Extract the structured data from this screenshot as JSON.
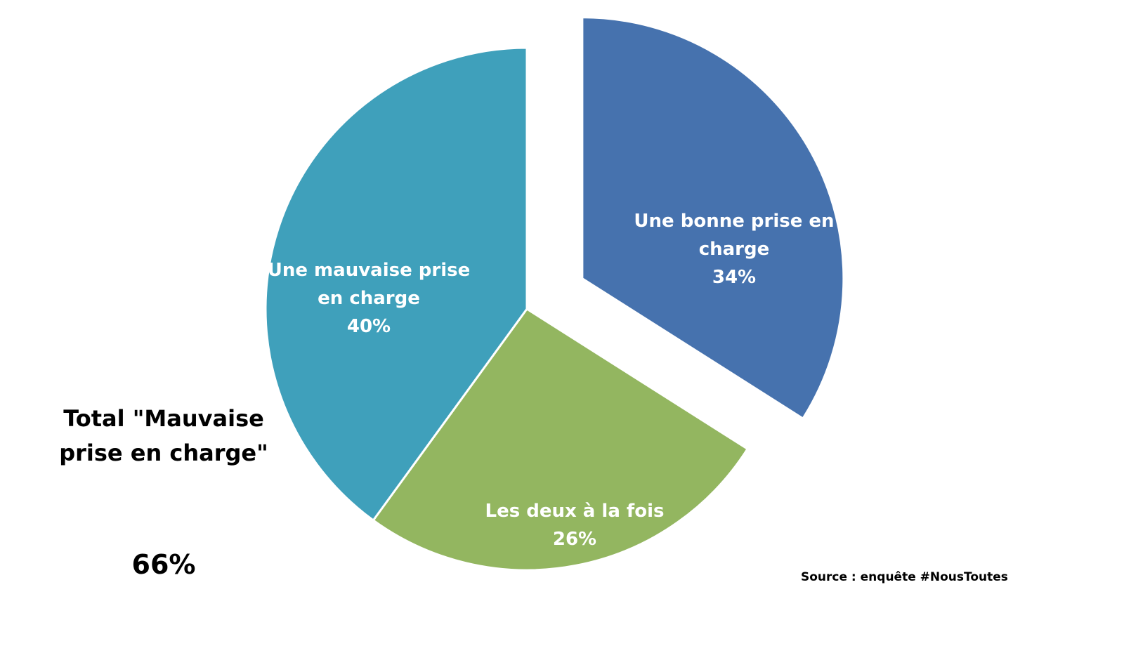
{
  "chart_data": {
    "type": "pie",
    "categories": [
      "Une bonne prise en charge",
      "Les deux à la fois",
      "Une mauvaise prise en charge"
    ],
    "values": [
      34,
      26,
      40
    ],
    "value_labels": [
      "34%",
      "26%",
      "40%"
    ],
    "colors": [
      "#4672ae",
      "#93b660",
      "#3fa0bb"
    ],
    "annotations": {
      "total_label": "Total \"Mauvaise prise en charge\"",
      "total_value": "66%"
    },
    "source": "Source : enquête #NousToutes"
  }
}
